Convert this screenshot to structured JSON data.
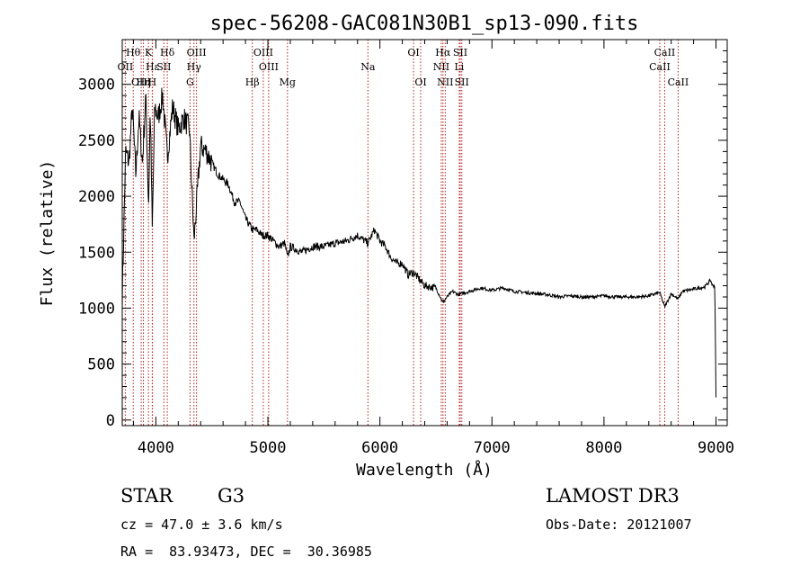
{
  "chart_data": {
    "type": "line",
    "title": "spec-56208-GAC081N30B1_sp13-090.fits",
    "xlabel": "Wavelength (Å)",
    "ylabel": "Flux (relative)",
    "xlim": [
      3700,
      9100
    ],
    "ylim": [
      -50,
      3400
    ],
    "xticks": [
      4000,
      5000,
      6000,
      7000,
      8000,
      9000
    ],
    "xtick_labels": [
      "4000",
      "5000",
      "6000",
      "7000",
      "8000",
      "9000"
    ],
    "yticks": [
      0,
      500,
      1000,
      1500,
      2000,
      2500,
      3000
    ],
    "ytick_labels": [
      "0",
      "500",
      "1000",
      "1500",
      "2000",
      "2500",
      "3000"
    ],
    "series": [
      {
        "name": "flux",
        "x": [
          3700,
          3730,
          3760,
          3790,
          3820,
          3850,
          3880,
          3910,
          3935,
          3950,
          3968,
          3990,
          4020,
          4060,
          4102,
          4150,
          4200,
          4250,
          4300,
          4340,
          4400,
          4450,
          4500,
          4550,
          4600,
          4650,
          4700,
          4750,
          4800,
          4861,
          4900,
          4950,
          5000,
          5050,
          5100,
          5150,
          5175,
          5200,
          5300,
          5400,
          5500,
          5600,
          5700,
          5800,
          5893,
          5950,
          6000,
          6050,
          6100,
          6150,
          6200,
          6250,
          6300,
          6400,
          6500,
          6563,
          6600,
          6650,
          6700,
          6800,
          6900,
          7000,
          7100,
          7200,
          7300,
          7400,
          7500,
          7600,
          7700,
          7800,
          7900,
          8000,
          8100,
          8200,
          8300,
          8400,
          8498,
          8542,
          8600,
          8662,
          8700,
          8800,
          8900,
          8950,
          8970,
          8990,
          9000
        ],
        "y": [
          1100,
          2400,
          2300,
          2800,
          2200,
          2700,
          2300,
          2900,
          1900,
          2800,
          1700,
          2800,
          2700,
          2900,
          2350,
          2800,
          2600,
          2700,
          2600,
          1600,
          2450,
          2400,
          2300,
          2200,
          2150,
          2100,
          1950,
          1950,
          1800,
          1700,
          1700,
          1650,
          1650,
          1600,
          1550,
          1580,
          1450,
          1550,
          1500,
          1550,
          1550,
          1580,
          1600,
          1650,
          1580,
          1700,
          1600,
          1550,
          1450,
          1400,
          1400,
          1300,
          1320,
          1200,
          1180,
          1050,
          1100,
          1150,
          1120,
          1150,
          1180,
          1160,
          1180,
          1150,
          1140,
          1130,
          1120,
          1100,
          1110,
          1100,
          1100,
          1110,
          1100,
          1100,
          1100,
          1110,
          1140,
          1010,
          1130,
          1080,
          1150,
          1170,
          1190,
          1250,
          1200,
          1200,
          200
        ]
      }
    ],
    "lines": [
      {
        "label": "Hθ",
        "wavelength": 3798,
        "row": 0
      },
      {
        "label": "K",
        "wavelength": 3934,
        "row": 0
      },
      {
        "label": "Hδ",
        "wavelength": 4102,
        "row": 0
      },
      {
        "label": "OIII",
        "wavelength": 4363,
        "row": 0
      },
      {
        "label": "OIII",
        "wavelength": 4959,
        "row": 0
      },
      {
        "label": "OI",
        "wavelength": 6300,
        "row": 0
      },
      {
        "label": "Hα",
        "wavelength": 6563,
        "row": 0
      },
      {
        "label": "SII",
        "wavelength": 6717,
        "row": 0
      },
      {
        "label": "CaII",
        "wavelength": 8542,
        "row": 0
      },
      {
        "label": "OII",
        "wavelength": 3727,
        "row": 1
      },
      {
        "label": "Hε",
        "wavelength": 3970,
        "row": 1
      },
      {
        "label": "SII",
        "wavelength": 4072,
        "row": 1
      },
      {
        "label": "Hγ",
        "wavelength": 4340,
        "row": 1
      },
      {
        "label": "OIII",
        "wavelength": 5007,
        "row": 1
      },
      {
        "label": "Na",
        "wavelength": 5893,
        "row": 1
      },
      {
        "label": "NII",
        "wavelength": 6548,
        "row": 1
      },
      {
        "label": "Li",
        "wavelength": 6708,
        "row": 1
      },
      {
        "label": "CaII",
        "wavelength": 8498,
        "row": 1
      },
      {
        "label": "OIII",
        "wavelength": 3869,
        "row": 2
      },
      {
        "label": "Hη",
        "wavelength": 3889,
        "row": 2
      },
      {
        "label": "H",
        "wavelength": 3968,
        "row": 2
      },
      {
        "label": "G",
        "wavelength": 4305,
        "row": 2
      },
      {
        "label": "Hβ",
        "wavelength": 4861,
        "row": 2
      },
      {
        "label": "Mg",
        "wavelength": 5175,
        "row": 2
      },
      {
        "label": "OI",
        "wavelength": 6364,
        "row": 2
      },
      {
        "label": "NII",
        "wavelength": 6583,
        "row": 2
      },
      {
        "label": "SII",
        "wavelength": 6731,
        "row": 2
      },
      {
        "label": "CaII",
        "wavelength": 8662,
        "row": 2
      }
    ]
  },
  "info": {
    "object_class": "STAR",
    "subclass": "G3",
    "survey": "LAMOST DR3",
    "redshift_line": "cz = 47.0 ± 3.6 km/s",
    "obs_date_line": "Obs-Date: 20121007",
    "coord_line": "RA =  83.93473, DEC =  30.36985"
  }
}
